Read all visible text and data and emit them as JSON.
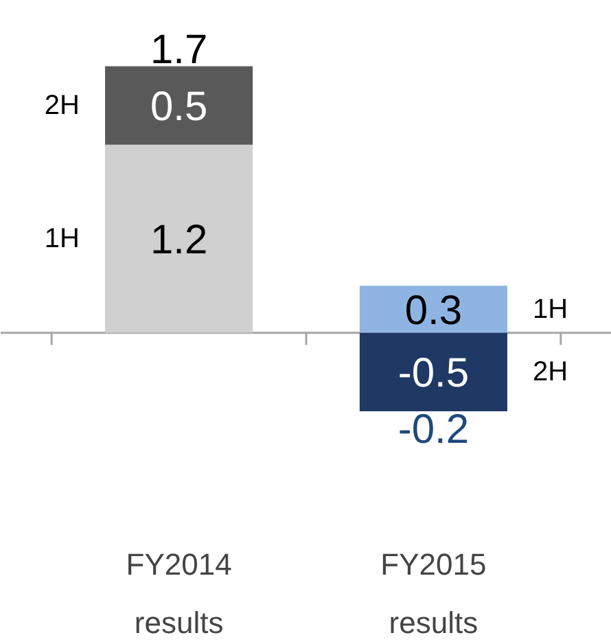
{
  "chart_data": {
    "type": "bar",
    "stacked": true,
    "categories": [
      "FY2014\nresults",
      "FY2015\nresults"
    ],
    "series": [
      {
        "name": "1H",
        "colors": [
          "#d0d0d0",
          "#8eb4e3"
        ],
        "values": [
          1.2,
          0.3
        ]
      },
      {
        "name": "2H",
        "colors": [
          "#595959",
          "#1f3864"
        ],
        "values": [
          0.5,
          -0.5
        ]
      }
    ],
    "data_labels": true,
    "totals": [
      "1.7",
      "-0.2"
    ],
    "grid": false
  }
}
